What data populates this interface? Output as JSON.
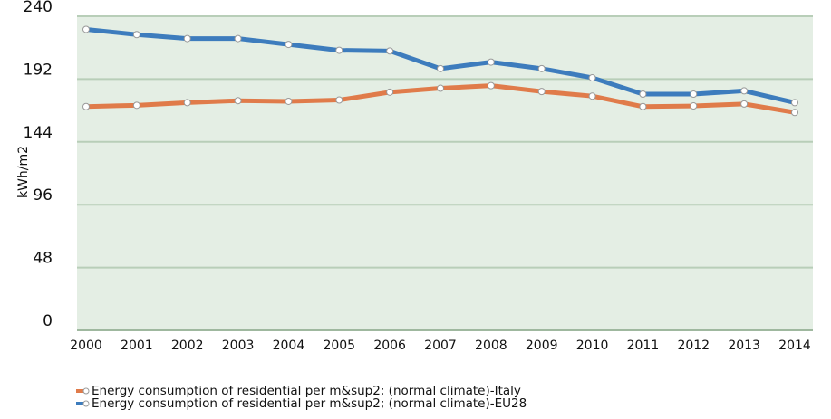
{
  "chart_data": {
    "type": "line",
    "y_label": "kWh/m2",
    "categories": [
      "2000",
      "2001",
      "2002",
      "2003",
      "2004",
      "2005",
      "2006",
      "2007",
      "2008",
      "2009",
      "2010",
      "2011",
      "2012",
      "2013",
      "2014"
    ],
    "series": [
      {
        "name": "Energy consumption of residential per m&sup2; (normal climate)-Italy",
        "color": "#e07b4a",
        "values": [
          171,
          172,
          174,
          175.5,
          175,
          176,
          182,
          185,
          187,
          182.5,
          179,
          171,
          171.5,
          173,
          166.5
        ]
      },
      {
        "name": "Energy consumption of residential per m&sup2; (normal climate)-EU28",
        "color": "#3d7cbd",
        "values": [
          230,
          226,
          223,
          223,
          218.5,
          214,
          213.5,
          200,
          205,
          200,
          193,
          180.5,
          180.5,
          183,
          174
        ]
      }
    ],
    "ylim": [
      0,
      240
    ],
    "yticks": [
      0,
      48,
      96,
      144,
      192,
      240
    ],
    "grid": true
  }
}
